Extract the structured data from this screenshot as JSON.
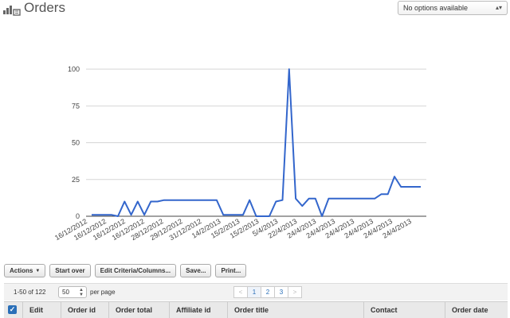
{
  "header": {
    "title": "Orders",
    "icon": "orders-icon",
    "filter": {
      "selected": "No options available"
    }
  },
  "chart_data": {
    "type": "line",
    "title": "",
    "xlabel": "",
    "ylabel": "",
    "ylim": [
      0,
      100
    ],
    "yticks": [
      0,
      25,
      50,
      75,
      100
    ],
    "grid": true,
    "line_color": "#3366cc",
    "tick_labels": [
      "16/12/2012",
      "16/12/2012",
      "16/12/2012",
      "16/12/2012",
      "28/12/2012",
      "29/12/2012",
      "31/12/2012",
      "14/2/2013",
      "15/2/2013",
      "15/2/2013",
      "5/4/2013",
      "22/4/2013",
      "24/4/2013",
      "24/4/2013",
      "24/4/2013",
      "24/4/2013",
      "24/4/2013",
      "24/4/2013"
    ],
    "series": [
      {
        "values": [
          1,
          1,
          1,
          1,
          0,
          10,
          1,
          10,
          1,
          10,
          10,
          11,
          11,
          11,
          11,
          11,
          11,
          11,
          11,
          11,
          1,
          1,
          1,
          1,
          11,
          0,
          0,
          0,
          10,
          11,
          100,
          12,
          7,
          12,
          12,
          0,
          12,
          12,
          12,
          12,
          12,
          12,
          12,
          12,
          15,
          15,
          27,
          20,
          20,
          20,
          20
        ]
      }
    ]
  },
  "toolbar": {
    "actions": "Actions",
    "start_over": "Start over",
    "edit_criteria": "Edit Criteria/Columns...",
    "save": "Save...",
    "print": "Print..."
  },
  "pager": {
    "range": "1-50 of 122",
    "per_page_value": "50",
    "per_page_label": "per page",
    "prev": "<",
    "next": ">",
    "pages": [
      "1",
      "2",
      "3"
    ],
    "current_page": "1"
  },
  "table": {
    "columns": [
      "Edit",
      "Order id",
      "Order total",
      "Affiliate id",
      "Order title",
      "Contact",
      "Order date"
    ]
  }
}
